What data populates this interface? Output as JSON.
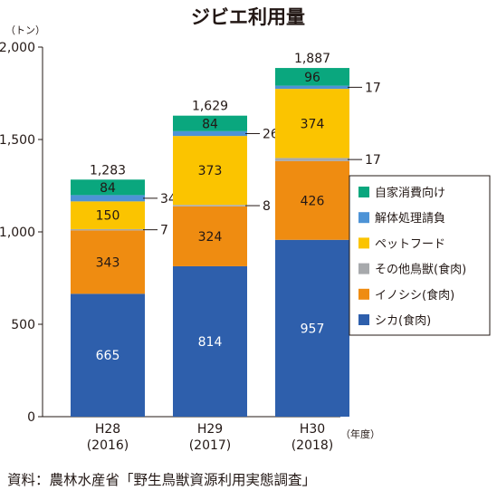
{
  "chart_data": {
    "type": "bar",
    "stacked": true,
    "title": "ジビエ利用量",
    "y_unit": "（トン）",
    "x_unit": "（年度）",
    "ylim": [
      0,
      2000
    ],
    "yticks": [
      0,
      500,
      1000,
      1500,
      2000
    ],
    "ytick_labels": [
      "0",
      "500",
      "1,000",
      "1,500",
      "2,000"
    ],
    "categories": [
      {
        "label": "H28",
        "sublabel": "(2016)"
      },
      {
        "label": "H29",
        "sublabel": "(2017)"
      },
      {
        "label": "H30",
        "sublabel": "(2018)"
      }
    ],
    "series": [
      {
        "name": "シカ(食肉)",
        "color": "#2e5fac",
        "values": [
          665,
          814,
          957
        ],
        "labels": [
          "665",
          "814",
          "957"
        ],
        "label_color": "#ffffff"
      },
      {
        "name": "イノシシ(食肉)",
        "color": "#ef8c11",
        "values": [
          343,
          324,
          426
        ],
        "labels": [
          "343",
          "324",
          "426"
        ],
        "label_color": "#231815"
      },
      {
        "name": "その他鳥獣(食肉)",
        "color": "#a7a9ac",
        "values": [
          7,
          8,
          17
        ],
        "labels": [
          "7",
          "8",
          "17"
        ],
        "label_color": "#231815",
        "callout": true
      },
      {
        "name": "ペットフード",
        "color": "#fbc400",
        "values": [
          150,
          373,
          374
        ],
        "labels": [
          "150",
          "373",
          "374"
        ],
        "label_color": "#231815"
      },
      {
        "name": "解体処理請負",
        "color": "#4d93d6",
        "values": [
          34,
          26,
          17
        ],
        "labels": [
          "34",
          "26",
          "17"
        ],
        "label_color": "#231815",
        "callout": true
      },
      {
        "name": "自家消費向け",
        "color": "#0aa77e",
        "values": [
          84,
          84,
          96
        ],
        "labels": [
          "84",
          "84",
          "96"
        ],
        "label_color": "#231815"
      }
    ],
    "totals": [
      "1,283",
      "1,629",
      "1,887"
    ],
    "legend_order": [
      "自家消費向け",
      "解体処理請負",
      "ペットフード",
      "その他鳥獣(食肉)",
      "イノシシ(食肉)",
      "シカ(食肉)"
    ],
    "legend_position": "right",
    "grid": false
  },
  "source_note": "資料：農林水産省「野生鳥獣資源利用実態調査」"
}
